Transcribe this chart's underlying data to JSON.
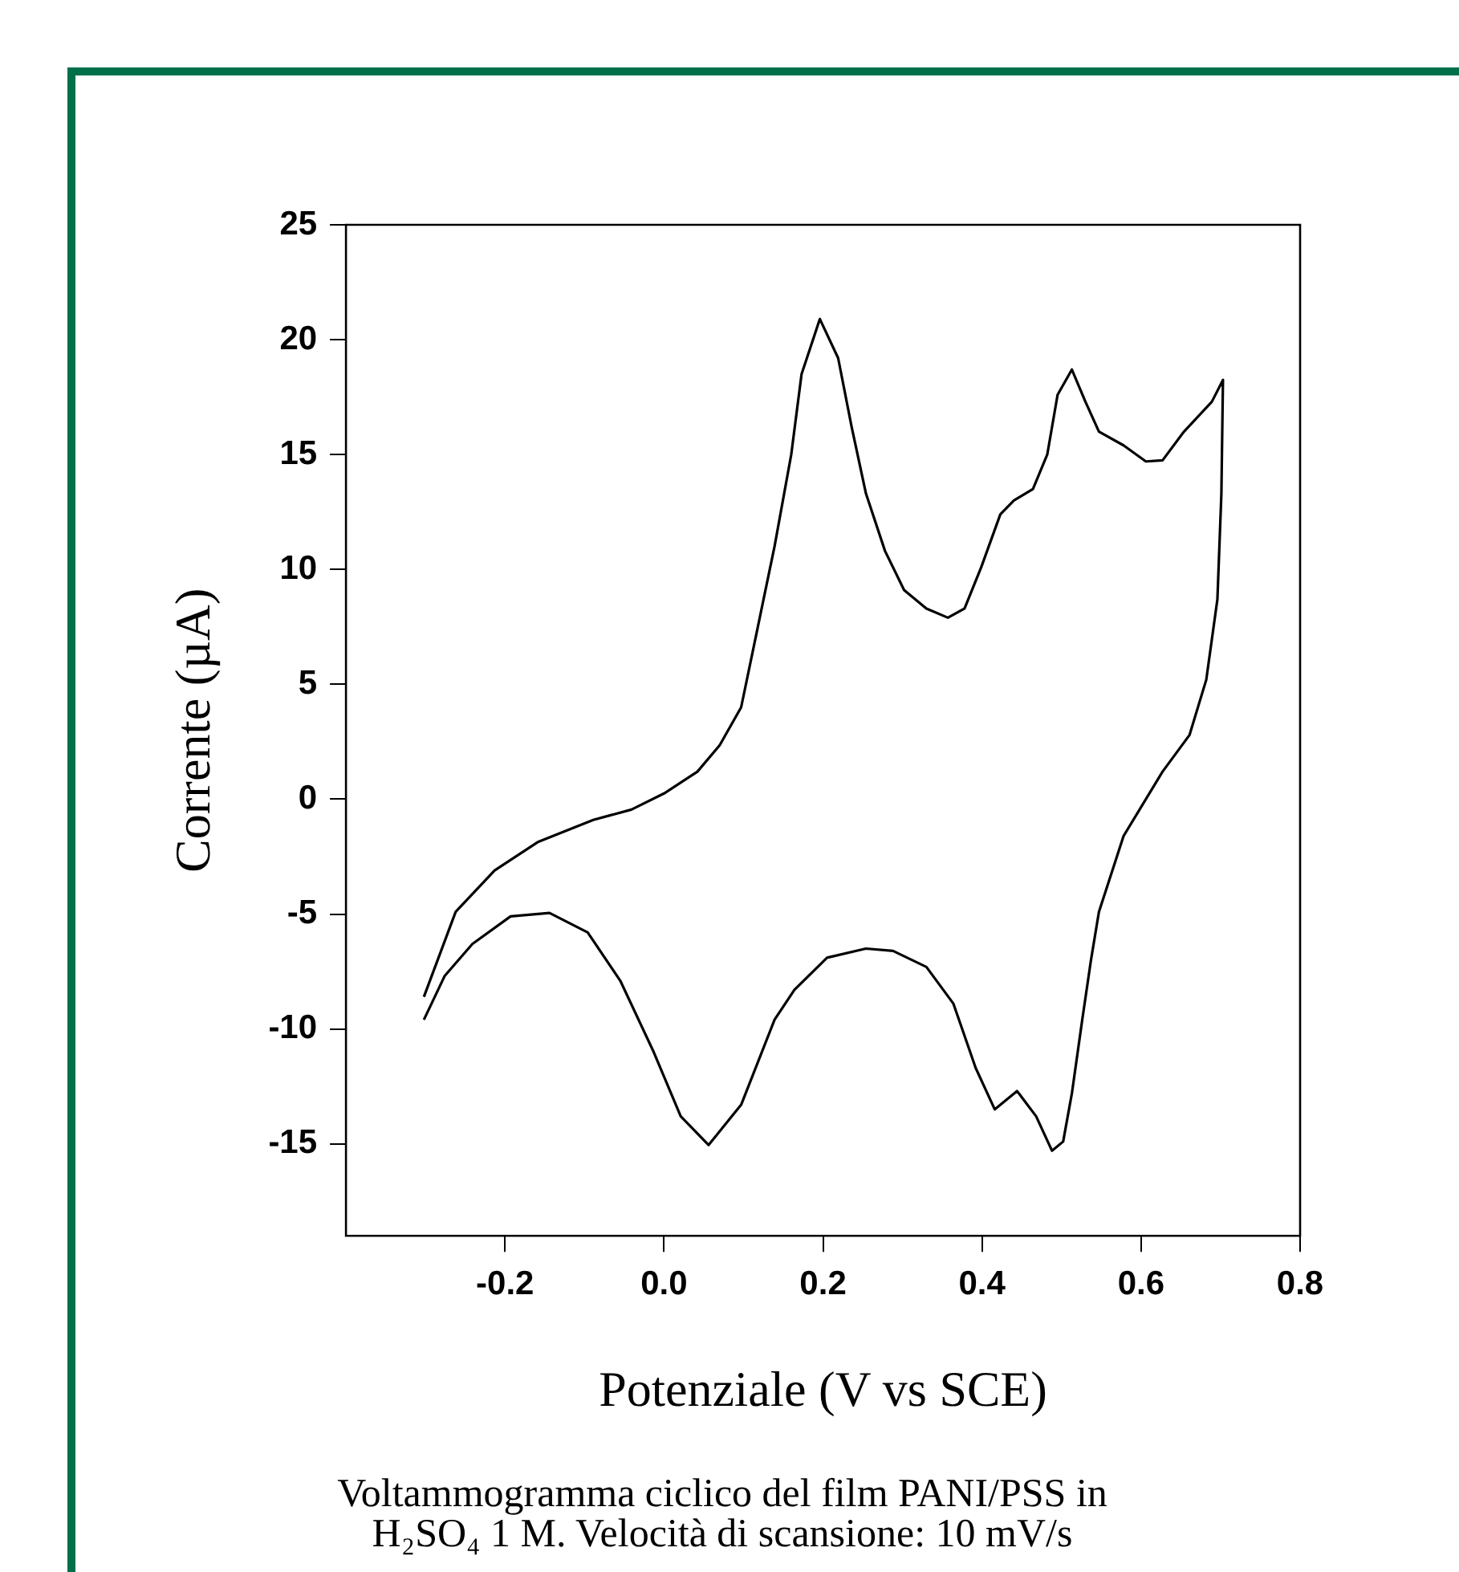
{
  "chart_data": {
    "type": "line",
    "xlabel": "Potenziale (V vs SCE)",
    "ylabel": "Corrente (µA)",
    "annotations": [
      "Voltammogramma ciclico del film PANI/PSS in H₂SO₄ 1 M. Velocità di scansione: 10 mV/s"
    ],
    "xlim": [
      -0.4,
      0.8
    ],
    "xticks": [
      -0.2,
      {
        "value": 0,
        "label": "0.0"
      },
      0.2,
      0.4,
      0.6,
      0.8
    ],
    "ylim": [
      -19,
      25
    ],
    "yticks": [
      -15,
      -10,
      -5,
      0,
      5,
      10,
      15,
      20,
      25
    ],
    "grid": false,
    "legend": false,
    "marker": "none",
    "line_style": "solid",
    "series": [
      {
        "color": "#000000",
        "x": [
          -0.302,
          -0.262,
          -0.213,
          -0.158,
          -0.089,
          -0.041,
          0.0,
          0.042,
          0.07,
          0.097,
          0.118,
          0.139,
          0.16,
          0.173,
          0.196,
          0.219,
          0.236,
          0.254,
          0.278,
          0.302,
          0.33,
          0.357,
          0.378,
          0.399,
          0.423,
          0.44,
          0.464,
          0.482,
          0.495,
          0.513,
          0.53,
          0.547,
          0.578,
          0.606,
          0.627,
          0.654,
          0.689,
          0.703,
          0.701,
          0.696,
          0.682,
          0.661,
          0.627,
          0.578,
          0.547,
          0.537,
          0.526,
          0.513,
          0.502,
          0.488,
          0.468,
          0.444,
          0.416,
          0.392,
          0.364,
          0.33,
          0.288,
          0.254,
          0.205,
          0.164,
          0.139,
          0.097,
          0.056,
          0.021,
          -0.013,
          -0.055,
          -0.096,
          -0.144,
          -0.193,
          -0.241,
          -0.276,
          -0.302
        ],
        "values": [
          -8.6,
          -4.9,
          -3.1,
          -1.85,
          -0.9,
          -0.45,
          0.25,
          1.2,
          2.35,
          4.0,
          7.5,
          11.0,
          15.0,
          18.5,
          20.9,
          19.2,
          16.2,
          13.3,
          10.8,
          9.1,
          8.3,
          7.9,
          8.3,
          10.1,
          12.4,
          13.0,
          13.5,
          15.0,
          17.6,
          18.7,
          17.3,
          16.0,
          15.4,
          14.7,
          14.75,
          16.0,
          17.3,
          18.25,
          13.3,
          8.7,
          5.2,
          2.8,
          1.2,
          -1.6,
          -4.9,
          -7.0,
          -9.6,
          -12.8,
          -14.9,
          -15.3,
          -13.8,
          -12.7,
          -13.5,
          -11.7,
          -8.9,
          -7.3,
          -6.6,
          -6.5,
          -6.9,
          -8.3,
          -9.6,
          -13.3,
          -15.05,
          -13.8,
          -11.0,
          -7.9,
          -5.8,
          -4.95,
          -5.1,
          -6.3,
          -7.7,
          -9.6
        ]
      }
    ]
  }
}
